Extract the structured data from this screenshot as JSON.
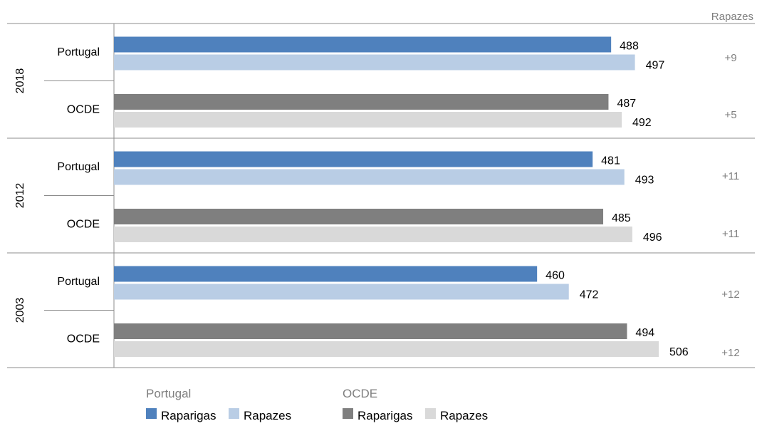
{
  "chart_data": {
    "type": "bar",
    "orientation": "horizontal",
    "xlim": [
      300,
      520
    ],
    "groups": [
      {
        "year": "2018",
        "rows": [
          {
            "label": "Portugal",
            "values": {
              "Raparigas": 488,
              "Rapazes": 497
            },
            "diff": "+9"
          },
          {
            "label": "OCDE",
            "values": {
              "Raparigas": 487,
              "Rapazes": 492
            },
            "diff": "+5"
          }
        ]
      },
      {
        "year": "2012",
        "rows": [
          {
            "label": "Portugal",
            "values": {
              "Raparigas": 481,
              "Rapazes": 493
            },
            "diff": "+11"
          },
          {
            "label": "OCDE",
            "values": {
              "Raparigas": 485,
              "Rapazes": 496
            },
            "diff": "+11"
          }
        ]
      },
      {
        "year": "2003",
        "rows": [
          {
            "label": "Portugal",
            "values": {
              "Raparigas": 460,
              "Rapazes": 472
            },
            "diff": "+12"
          },
          {
            "label": "OCDE",
            "values": {
              "Raparigas": 494,
              "Rapazes": 506
            },
            "diff": "+12"
          }
        ]
      }
    ],
    "diff_header": "Rapazes",
    "legend": {
      "placement": "bottom",
      "groups": [
        {
          "title": "Portugal",
          "entries": [
            {
              "name": "Raparigas",
              "color": "#4f81bd"
            },
            {
              "name": "Rapazes",
              "color": "#b9cde5"
            }
          ]
        },
        {
          "title": "OCDE",
          "entries": [
            {
              "name": "Raparigas",
              "color": "#7f7f7f"
            },
            {
              "name": "Rapazes",
              "color": "#d9d9d9"
            }
          ]
        }
      ]
    },
    "colors": {
      "portugal_raparigas": "#4f81bd",
      "portugal_rapazes": "#b9cde5",
      "ocde_raparigas": "#7f7f7f",
      "ocde_rapazes": "#d9d9d9",
      "grid": "#8c8c8c",
      "muted_text": "#7f7f7f"
    }
  }
}
